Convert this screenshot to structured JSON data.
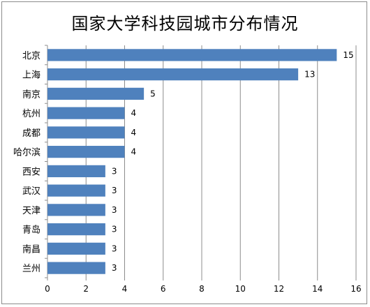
{
  "chart_data": {
    "type": "bar",
    "orientation": "horizontal",
    "title": "国家大学科技园城市分布情况",
    "categories": [
      "北京",
      "上海",
      "南京",
      "杭州",
      "成都",
      "哈尔滨",
      "西安",
      "武汉",
      "天津",
      "青岛",
      "南昌",
      "兰州"
    ],
    "values": [
      15,
      13,
      5,
      4,
      4,
      4,
      3,
      3,
      3,
      3,
      3,
      3
    ],
    "xlim": [
      0,
      16
    ],
    "xticks": [
      0,
      2,
      4,
      6,
      8,
      10,
      12,
      14,
      16
    ],
    "grid": true,
    "data_labels": true,
    "bar_color": "#4f81bd",
    "gridline_color": "#8c8c8c"
  }
}
